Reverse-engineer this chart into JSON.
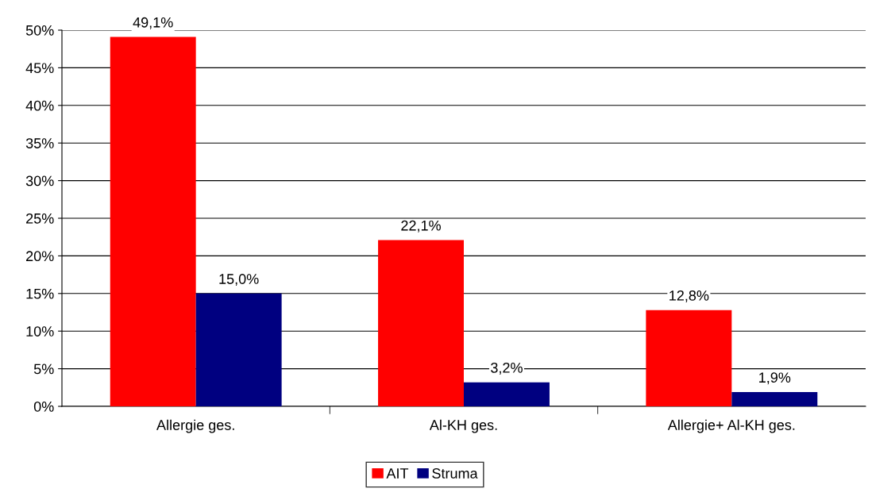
{
  "chart_data": {
    "type": "bar",
    "categories": [
      "Allergie ges.",
      "Al-KH ges.",
      "Allergie+ Al-KH ges."
    ],
    "series": [
      {
        "name": "AIT",
        "color": "#ff0000",
        "values": [
          49.1,
          22.1,
          12.8
        ],
        "value_labels": [
          "49,1%",
          "22,1%",
          "12,8%"
        ]
      },
      {
        "name": "Struma",
        "color": "#000080",
        "values": [
          15.0,
          3.2,
          1.9
        ],
        "value_labels": [
          "15,0%",
          "3,2%",
          "1,9%"
        ]
      }
    ],
    "ylim": [
      0,
      50
    ],
    "yticks": [
      {
        "value": 0,
        "label": "0%"
      },
      {
        "value": 5,
        "label": "5%"
      },
      {
        "value": 10,
        "label": "10%"
      },
      {
        "value": 15,
        "label": "15%"
      },
      {
        "value": 20,
        "label": "20%"
      },
      {
        "value": 25,
        "label": "25%"
      },
      {
        "value": 30,
        "label": "30%"
      },
      {
        "value": 35,
        "label": "35%"
      },
      {
        "value": 40,
        "label": "40%"
      },
      {
        "value": 45,
        "label": "45%"
      },
      {
        "value": 50,
        "label": "50%"
      }
    ],
    "grid": "y",
    "legend": "bottom"
  }
}
